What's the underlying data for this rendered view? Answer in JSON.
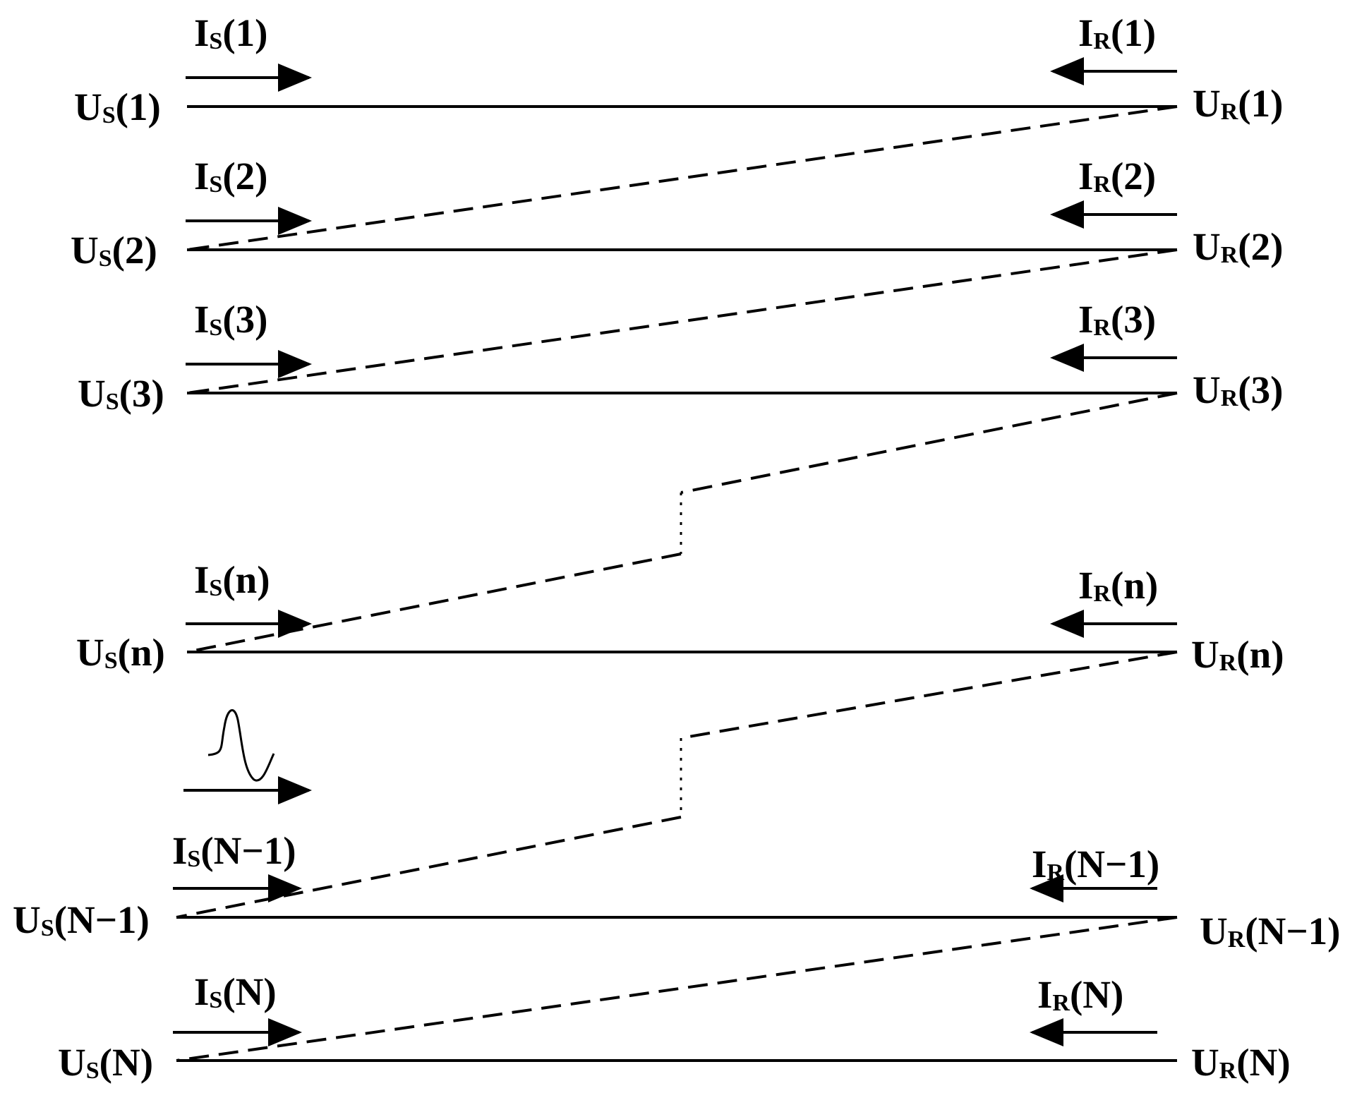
{
  "diagram": {
    "colors": {
      "ink": "#000000",
      "background": "#ffffff"
    },
    "lines": [
      {
        "us": {
          "main": "U",
          "sub": "S",
          "idx": "(1)"
        },
        "is": {
          "main": "I",
          "sub": "S",
          "idx": "(1)"
        },
        "ir": {
          "main": "I",
          "sub": "R",
          "idx": "(1)"
        },
        "ur": {
          "main": "U",
          "sub": "R",
          "idx": "(1)"
        }
      },
      {
        "us": {
          "main": "U",
          "sub": "S",
          "idx": "(2)"
        },
        "is": {
          "main": "I",
          "sub": "S",
          "idx": "(2)"
        },
        "ir": {
          "main": "I",
          "sub": "R",
          "idx": "(2)"
        },
        "ur": {
          "main": "U",
          "sub": "R",
          "idx": "(2)"
        }
      },
      {
        "us": {
          "main": "U",
          "sub": "S",
          "idx": "(3)"
        },
        "is": {
          "main": "I",
          "sub": "S",
          "idx": "(3)"
        },
        "ir": {
          "main": "I",
          "sub": "R",
          "idx": "(3)"
        },
        "ur": {
          "main": "U",
          "sub": "R",
          "idx": "(3)"
        }
      },
      {
        "us": {
          "main": "U",
          "sub": "S",
          "idx": "(n)"
        },
        "is": {
          "main": "I",
          "sub": "S",
          "idx": "(n)"
        },
        "ir": {
          "main": "I",
          "sub": "R",
          "idx": "(n)"
        },
        "ur": {
          "main": "U",
          "sub": "R",
          "idx": "(n)"
        }
      },
      {
        "us": {
          "main": "U",
          "sub": "S",
          "idx": "(N−1)"
        },
        "is": {
          "main": "I",
          "sub": "S",
          "idx": "(N−1)"
        },
        "ir": {
          "main": "I",
          "sub": "R",
          "idx": "(N−1)"
        },
        "ur": {
          "main": "U",
          "sub": "R",
          "idx": "(N−1)"
        }
      },
      {
        "us": {
          "main": "U",
          "sub": "S",
          "idx": "(N)"
        },
        "is": {
          "main": "I",
          "sub": "S",
          "idx": "(N)"
        },
        "ir": {
          "main": "I",
          "sub": "R",
          "idx": "(N)"
        },
        "ur": {
          "main": "U",
          "sub": "R",
          "idx": "(N)"
        }
      }
    ]
  }
}
